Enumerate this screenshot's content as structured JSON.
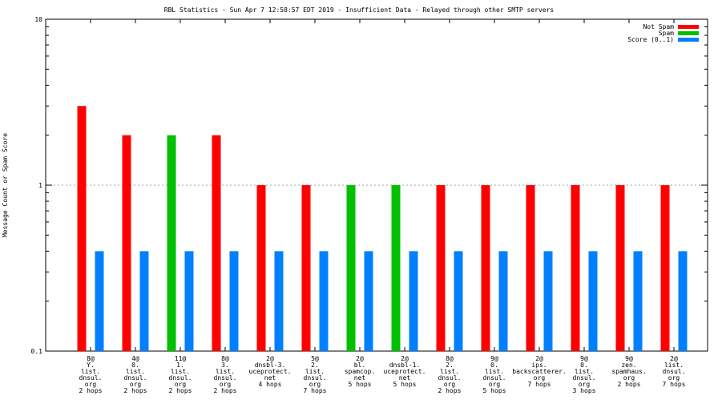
{
  "chart_data": {
    "type": "bar",
    "title": "RBL Statistics - Sun Apr  7 12:58:57 EDT 2019 - Insufficient Data - Relayed through other SMTP servers",
    "ylabel": "Message Count or Spam Score",
    "xlabel": "",
    "yscale": "log",
    "ylim": [
      0.1,
      10
    ],
    "yticks": [
      "0.1",
      "1",
      "10"
    ],
    "grid": true,
    "legend_position": "top-right",
    "categories": [
      [
        "8@",
        "Y.",
        "list.",
        "dnsul.",
        "org",
        "2 hops"
      ],
      [
        "4@",
        "0.",
        "list.",
        "dnsul.",
        "org",
        "2 hops"
      ],
      [
        "11@",
        "1.",
        "list.",
        "dnsul.",
        "org",
        "2 hops"
      ],
      [
        "8@",
        "3.",
        "list.",
        "dnsul.",
        "org",
        "2 hops"
      ],
      [
        "2@",
        "dnsbl-3.",
        "uceprotect.",
        "net",
        "4 hops"
      ],
      [
        "5@",
        "2.",
        "list.",
        "dnsul.",
        "org",
        "7 hops"
      ],
      [
        "2@",
        "bl.",
        "spamcop.",
        "net",
        "5 hops"
      ],
      [
        "2@",
        "dnsbl-1.",
        "uceprotect.",
        "net",
        "5 hops"
      ],
      [
        "8@",
        "2.",
        "list.",
        "dnsul.",
        "org",
        "2 hops"
      ],
      [
        "9@",
        "0.",
        "list.",
        "dnsul.",
        "org",
        "5 hops"
      ],
      [
        "2@",
        "ips.",
        "backscatterer.",
        "org",
        "7 hops"
      ],
      [
        "9@",
        "0.",
        "list.",
        "dnsul.",
        "org",
        "3 hops"
      ],
      [
        "9@",
        "zen.",
        "spamhaus.",
        "org",
        "2 hops"
      ],
      [
        "2@",
        "list.",
        "dnsul.",
        "org",
        "7 hops"
      ]
    ],
    "series": [
      {
        "name": "Not Spam",
        "color": "#ff0000",
        "values": [
          3,
          2,
          0,
          2,
          1,
          1,
          0,
          0,
          1,
          1,
          1,
          1,
          1,
          1
        ]
      },
      {
        "name": "Spam",
        "color": "#00c000",
        "values": [
          0,
          0,
          2,
          0,
          0,
          0,
          1,
          1,
          0,
          0,
          0,
          0,
          0,
          0
        ]
      },
      {
        "name": "Score (0..1)",
        "color": "#0080ff",
        "values": [
          0.4,
          0.4,
          0.4,
          0.4,
          0.4,
          0.4,
          0.4,
          0.4,
          0.4,
          0.4,
          0.4,
          0.4,
          0.4,
          0.4
        ]
      }
    ]
  }
}
